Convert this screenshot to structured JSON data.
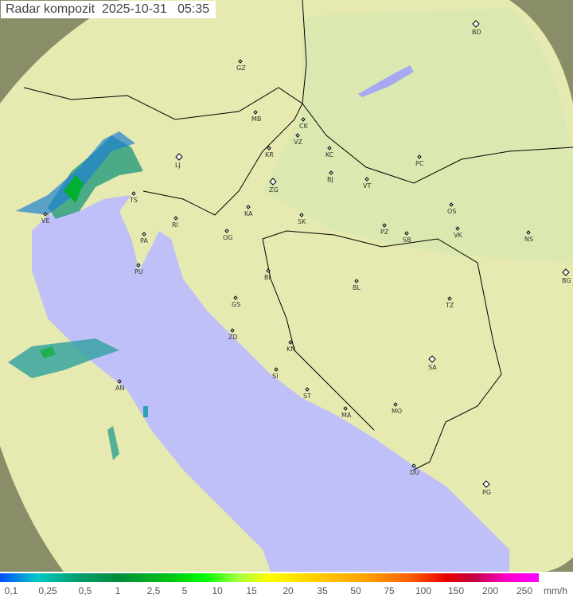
{
  "header": {
    "title": "Radar kompozit",
    "date": "2025-10-31",
    "time": "05:35"
  },
  "map": {
    "sea_color": "#c0c0f8",
    "coverage_color": "#e8ecb0",
    "outside_color": "#8a8e68",
    "cities": [
      "BD",
      "GZ",
      "MB",
      "CK",
      "VZ",
      "KR",
      "KC",
      "LJ",
      "PC",
      "BJ",
      "VT",
      "ZG",
      "TS",
      "VE",
      "KA",
      "SK",
      "OS",
      "RI",
      "PA",
      "OG",
      "PZ",
      "SB",
      "VK",
      "NS",
      "PU",
      "BI",
      "BL",
      "BG",
      "GS",
      "TZ",
      "ZD",
      "KN",
      "SA",
      "SI",
      "AN",
      "ST",
      "MA",
      "MO",
      "DU",
      "PG"
    ]
  },
  "legend": {
    "labels": [
      "0,1",
      "0,25",
      "0,5",
      "1",
      "2,5",
      "5",
      "10",
      "15",
      "20",
      "35",
      "50",
      "75",
      "100",
      "150",
      "200",
      "250"
    ],
    "unit": "mm/h"
  }
}
